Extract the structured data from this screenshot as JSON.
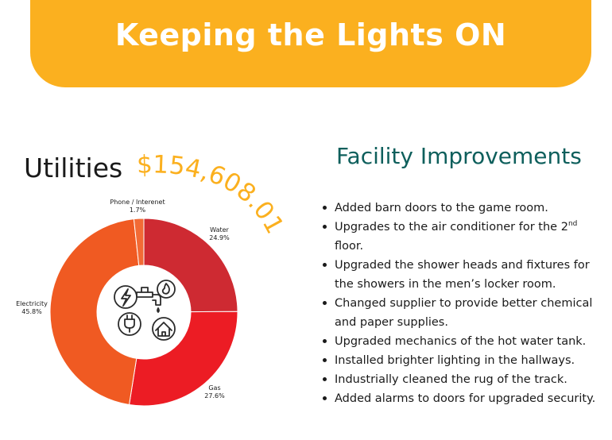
{
  "banner": {
    "title": "Keeping the Lights ON"
  },
  "utilities": {
    "title": "Utilities",
    "amount": "$154,608.01"
  },
  "chart_data": {
    "type": "pie",
    "categories": [
      "Water",
      "Gas",
      "Electricity",
      "Phone / Interenet"
    ],
    "values": [
      24.9,
      27.6,
      45.8,
      1.7
    ],
    "value_labels": [
      "24.9%",
      "27.6%",
      "45.8%",
      "1.7%"
    ],
    "colors": [
      "#ce2a32",
      "#ec1c24",
      "#f05a22",
      "#f26a35"
    ],
    "center_icons": [
      "lightning-icon",
      "faucet-icon",
      "flame-icon",
      "plug-icon",
      "house-icon"
    ]
  },
  "facility": {
    "title": "Facility Improvements",
    "items": [
      {
        "text": "Added barn doors to the game room."
      },
      {
        "text": "Upgrades to the air conditioner for the 2",
        "sup": "nd",
        "after": " floor."
      },
      {
        "text": "Upgraded the shower heads and fixtures for the showers in the men’s locker room."
      },
      {
        "text": "Changed supplier to provide better chemical and paper supplies."
      },
      {
        "text": "Upgraded mechanics of the hot water tank."
      },
      {
        "text": "Installed brighter lighting in the hallways."
      },
      {
        "text": "Industrially cleaned the rug of the track."
      },
      {
        "text": "Added alarms to doors for upgraded security."
      }
    ]
  },
  "colors": {
    "banner": "#fbb01f",
    "amount": "#fbb01f",
    "heading": "#0e5f5c"
  }
}
